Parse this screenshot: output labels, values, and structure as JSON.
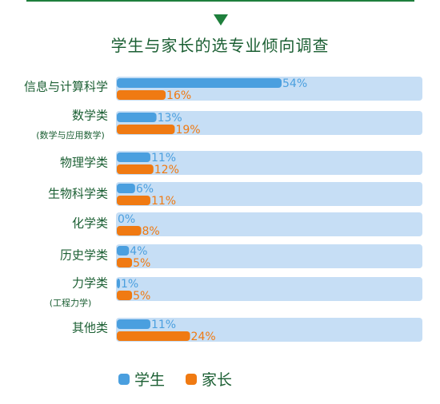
{
  "title": "学生与家长的选专业倾向调查",
  "colors": {
    "student": "#4a9fdf",
    "parent": "#f07a12",
    "track": "#c6def5",
    "text": "#1b5f33"
  },
  "legend": [
    {
      "name": "学生",
      "color": "#4a9fdf"
    },
    {
      "name": "家长",
      "color": "#f07a12"
    }
  ],
  "chart_data": {
    "type": "bar",
    "orientation": "horizontal",
    "title": "学生与家长的选专业倾向调查",
    "categories": [
      "信息与计算科学",
      "数学类",
      "物理学类",
      "生物科学类",
      "化学类",
      "历史学类",
      "力学类",
      "其他类"
    ],
    "subtitles": [
      "",
      "(数学与应用数学)",
      "",
      "",
      "",
      "",
      "(工程力学)",
      ""
    ],
    "unit": "%",
    "xlim": [
      0,
      54
    ],
    "series": [
      {
        "name": "学生",
        "values": [
          54,
          13,
          11,
          6,
          0,
          4,
          1,
          11
        ]
      },
      {
        "name": "家长",
        "values": [
          16,
          19,
          12,
          11,
          8,
          5,
          5,
          24
        ]
      }
    ],
    "legend_position": "bottom"
  }
}
